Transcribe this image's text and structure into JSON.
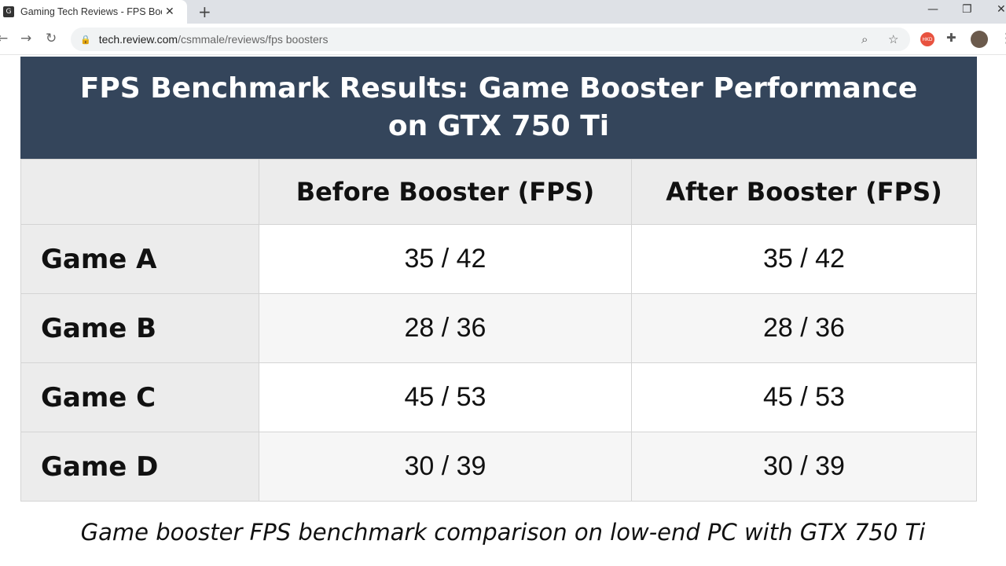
{
  "browser": {
    "tab_title": "Gaming Tech Reviews - FPS Boosters",
    "favicon_text": "G",
    "url_domain": "tech.review.com",
    "url_path": "/csmmale/reviews/fps boosters",
    "profile_badge": "HKD"
  },
  "table": {
    "title": "FPS Benchmark Results: Game Booster Performance on GTX 750 Ti",
    "columns": [
      "",
      "Before Booster (FPS)",
      "After Booster (FPS)"
    ],
    "rows": [
      {
        "game": "Game A",
        "before": "35 / 42",
        "after": "35 / 42"
      },
      {
        "game": "Game B",
        "before": "28 / 36",
        "after": "28 / 36"
      },
      {
        "game": "Game C",
        "before": "45 / 53",
        "after": "45 / 53"
      },
      {
        "game": "Game D",
        "before": "30 / 39",
        "after": "30 / 39"
      }
    ],
    "header_color": "#34455b"
  },
  "caption": "Game booster FPS benchmark comparison on low-end PC with GTX 750 Ti"
}
